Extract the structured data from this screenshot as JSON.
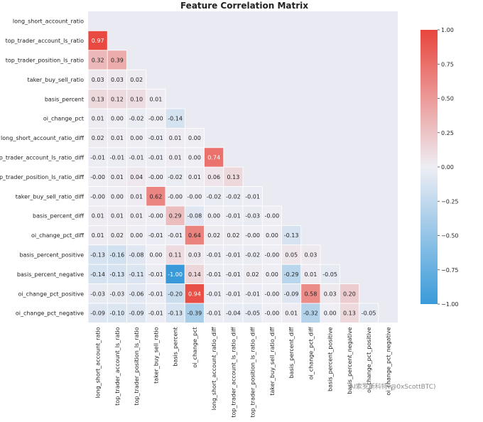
{
  "chart_data": {
    "type": "heatmap",
    "title": "Feature Correlation Matrix",
    "variables": [
      "long_short_account_ratio",
      "top_trader_account_ls_ratio",
      "top_trader_position_ls_ratio",
      "taker_buy_sell_ratio",
      "basis_percent",
      "oi_change_pct",
      "long_short_account_ratio_diff",
      "top_trader_account_ls_ratio_diff",
      "top_trader_position_ls_ratio_diff",
      "taker_buy_sell_ratio_diff",
      "basis_percent_diff",
      "oi_change_pct_diff",
      "basis_percent_positive",
      "basis_percent_negative",
      "oi_change_pct_positive",
      "oi_change_pct_negative"
    ],
    "lower_triangle_values": [
      [],
      [
        0.97
      ],
      [
        0.32,
        0.39
      ],
      [
        0.03,
        0.03,
        0.02
      ],
      [
        0.13,
        0.12,
        0.1,
        0.01
      ],
      [
        0.01,
        0.0,
        -0.02,
        -0.0,
        -0.14
      ],
      [
        0.02,
        0.01,
        0.0,
        -0.01,
        0.01,
        0.0
      ],
      [
        -0.01,
        -0.01,
        -0.01,
        -0.01,
        0.01,
        0.0,
        0.74
      ],
      [
        -0.0,
        0.01,
        0.04,
        -0.0,
        -0.02,
        0.01,
        0.06,
        0.13
      ],
      [
        -0.0,
        0.0,
        0.01,
        0.62,
        -0.0,
        -0.0,
        -0.02,
        -0.02,
        -0.01
      ],
      [
        0.01,
        0.01,
        0.01,
        -0.0,
        0.29,
        -0.08,
        0.0,
        -0.01,
        -0.03,
        -0.0
      ],
      [
        0.01,
        0.02,
        0.0,
        -0.01,
        -0.01,
        0.64,
        0.02,
        0.02,
        -0.0,
        0.0,
        -0.13
      ],
      [
        -0.13,
        -0.16,
        -0.08,
        0.0,
        0.11,
        0.03,
        -0.01,
        -0.01,
        -0.02,
        -0.0,
        0.05,
        0.03
      ],
      [
        -0.14,
        -0.13,
        -0.11,
        -0.01,
        -1.0,
        0.14,
        -0.01,
        -0.01,
        0.02,
        0.0,
        -0.29,
        0.01,
        -0.05
      ],
      [
        -0.03,
        -0.03,
        -0.06,
        -0.01,
        -0.2,
        0.94,
        -0.01,
        -0.01,
        -0.01,
        -0.0,
        -0.09,
        0.58,
        0.03,
        0.2
      ],
      [
        -0.09,
        -0.1,
        -0.09,
        -0.01,
        -0.13,
        -0.39,
        -0.01,
        -0.04,
        -0.05,
        -0.0,
        0.01,
        -0.32,
        0.0,
        0.13,
        -0.05
      ]
    ],
    "colorbar": {
      "range": [
        -1.0,
        1.0
      ],
      "ticks": [
        1.0,
        0.75,
        0.5,
        0.25,
        0.0,
        -0.25,
        -0.5,
        -0.75,
        -1.0
      ],
      "tick_labels": [
        "1.00",
        "0.75",
        "0.50",
        "0.25",
        "0.00",
        "−0.25",
        "−0.50",
        "−0.75",
        "−1.00"
      ],
      "low_color": "#3a9ad9",
      "mid_color": "#eeeef4",
      "high_color": "#e8453c"
    },
    "value_format": "two decimals",
    "background_color": "#eaeaf2",
    "watermark": "AI索罗斯科特(@0xScottBTC)"
  }
}
